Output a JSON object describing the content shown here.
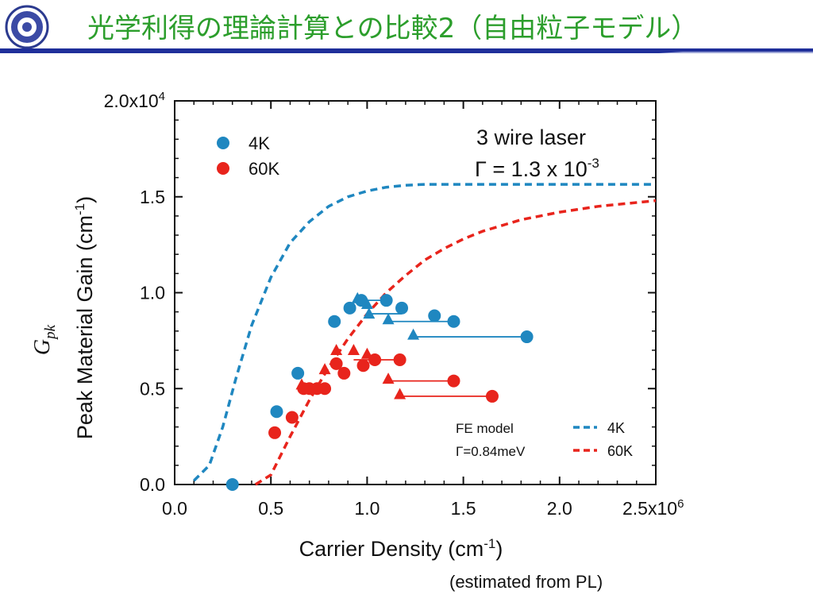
{
  "slide": {
    "title": "光学利得の理論計算との比較2（自由粒子モデル）",
    "note": "(estimated from PL)"
  },
  "colors": {
    "title": "#2c9e2c",
    "rule": "#1f2f9a",
    "blue": "#1f87c0",
    "red": "#e8241c"
  },
  "chart_data": {
    "type": "scatter",
    "xlabel": "Carrier Density (cm-1)",
    "ylabel": "Peak Material Gain (cm-1)",
    "ylabel_symbol": "Gpk",
    "xlim": [
      0,
      2500000
    ],
    "ylim": [
      0,
      20000
    ],
    "x_ticks": [
      "0.0",
      "0.5",
      "1.0",
      "1.5",
      "2.0",
      "2.5x10^6"
    ],
    "y_ticks": [
      "0.0",
      "0.5",
      "1.0",
      "1.5",
      "2.0x10^4"
    ],
    "annotation": [
      "3 wire laser",
      "Γ = 1.3 x 10^-3"
    ],
    "fe_model_label": [
      "FE model",
      "Γ=0.84meV"
    ],
    "legend_points": [
      "4K",
      "60K"
    ],
    "legend_lines": [
      "4K",
      "60K"
    ],
    "series": [
      {
        "name": "4K",
        "color": "#1f87c0",
        "circles": [
          [
            300000,
            0
          ],
          [
            530000,
            3800
          ],
          [
            640000,
            5800
          ],
          [
            830000,
            8500
          ],
          [
            910000,
            9200
          ],
          [
            970000,
            9600
          ],
          [
            1100000,
            9600
          ],
          [
            1180000,
            9200
          ],
          [
            1350000,
            8800
          ],
          [
            1450000,
            8500
          ],
          [
            1830000,
            7700
          ]
        ],
        "triangles": [
          [
            950000,
            9700
          ],
          [
            1000000,
            9400
          ],
          [
            1010000,
            8900
          ],
          [
            1110000,
            8600
          ],
          [
            1240000,
            7800
          ]
        ],
        "connections": [
          [
            950000,
            1100000,
            9600
          ],
          [
            1010000,
            1180000,
            8900
          ],
          [
            1110000,
            1450000,
            8500
          ],
          [
            1240000,
            1830000,
            7700
          ]
        ]
      },
      {
        "name": "60K",
        "color": "#e8241c",
        "circles": [
          [
            520000,
            2700
          ],
          [
            610000,
            3500
          ],
          [
            670000,
            5000
          ],
          [
            700000,
            5000
          ],
          [
            740000,
            5000
          ],
          [
            780000,
            5000
          ],
          [
            880000,
            5800
          ],
          [
            840000,
            6300
          ],
          [
            980000,
            6200
          ],
          [
            1040000,
            6500
          ],
          [
            1170000,
            6500
          ],
          [
            1450000,
            5400
          ],
          [
            1650000,
            4600
          ]
        ],
        "triangles": [
          [
            660000,
            5200
          ],
          [
            780000,
            6000
          ],
          [
            840000,
            7000
          ],
          [
            930000,
            7000
          ],
          [
            1000000,
            6800
          ],
          [
            1110000,
            5500
          ],
          [
            1170000,
            4700
          ]
        ],
        "connections": [
          [
            930000,
            1170000,
            6500
          ],
          [
            1110000,
            1450000,
            5400
          ],
          [
            1170000,
            1650000,
            4600
          ]
        ]
      }
    ],
    "model_curves": [
      {
        "name": "4K",
        "color": "#1f87c0",
        "points": [
          [
            100000,
            200
          ],
          [
            180000,
            1000
          ],
          [
            250000,
            3000
          ],
          [
            320000,
            5600
          ],
          [
            400000,
            8300
          ],
          [
            500000,
            10800
          ],
          [
            600000,
            12600
          ],
          [
            700000,
            13700
          ],
          [
            800000,
            14500
          ],
          [
            900000,
            15000
          ],
          [
            1000000,
            15300
          ],
          [
            1100000,
            15500
          ],
          [
            1200000,
            15600
          ],
          [
            1300000,
            15650
          ],
          [
            1500000,
            15650
          ],
          [
            2000000,
            15650
          ],
          [
            2500000,
            15650
          ]
        ]
      },
      {
        "name": "60K",
        "color": "#e8241c",
        "points": [
          [
            420000,
            0
          ],
          [
            500000,
            500
          ],
          [
            600000,
            2500
          ],
          [
            700000,
            4400
          ],
          [
            800000,
            6100
          ],
          [
            900000,
            7600
          ],
          [
            1000000,
            8900
          ],
          [
            1100000,
            10000
          ],
          [
            1200000,
            10900
          ],
          [
            1300000,
            11700
          ],
          [
            1400000,
            12300
          ],
          [
            1500000,
            12800
          ],
          [
            1600000,
            13200
          ],
          [
            1800000,
            13800
          ],
          [
            2000000,
            14200
          ],
          [
            2200000,
            14500
          ],
          [
            2500000,
            14800
          ]
        ]
      }
    ]
  }
}
